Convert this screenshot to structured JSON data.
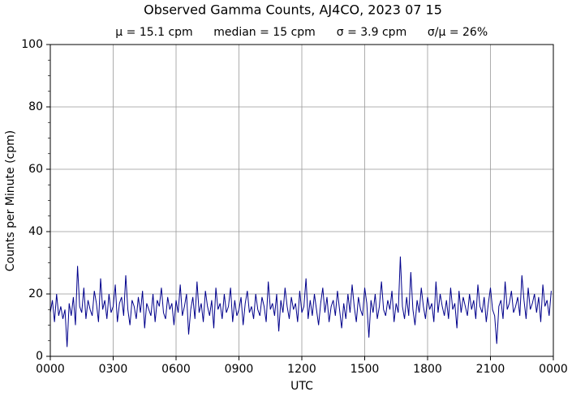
{
  "chart_data": {
    "type": "line",
    "title": "Observed Gamma Counts, AJ4CO, 2023 07 15",
    "stats": [
      "μ = 15.1 cpm",
      "median = 15 cpm",
      "σ = 3.9 cpm",
      "σ/μ = 26%"
    ],
    "xlabel": "UTC",
    "ylabel": "Counts per Minute (cpm)",
    "color": "#00008b",
    "grid": true,
    "xlim": [
      0,
      1440
    ],
    "xticks": [
      {
        "value": 0,
        "label": "0000"
      },
      {
        "value": 180,
        "label": "0300"
      },
      {
        "value": 360,
        "label": "0600"
      },
      {
        "value": 540,
        "label": "0900"
      },
      {
        "value": 720,
        "label": "1200"
      },
      {
        "value": 900,
        "label": "1500"
      },
      {
        "value": 1080,
        "label": "1800"
      },
      {
        "value": 1260,
        "label": "2100"
      },
      {
        "value": 1440,
        "label": "0000"
      }
    ],
    "ylim": [
      0,
      100
    ],
    "yticks": [
      0,
      20,
      40,
      60,
      80,
      100
    ],
    "yminorticks": [
      5,
      10,
      15,
      25,
      30,
      35,
      45,
      50,
      55,
      65,
      70,
      75,
      85,
      90,
      95
    ],
    "x": [
      0,
      6,
      12,
      18,
      24,
      30,
      36,
      42,
      48,
      54,
      60,
      66,
      72,
      78,
      84,
      90,
      96,
      102,
      108,
      114,
      120,
      126,
      132,
      138,
      144,
      150,
      156,
      162,
      168,
      174,
      180,
      186,
      192,
      198,
      204,
      210,
      216,
      222,
      228,
      234,
      240,
      246,
      252,
      258,
      264,
      270,
      276,
      282,
      288,
      294,
      300,
      306,
      312,
      318,
      324,
      330,
      336,
      342,
      348,
      354,
      360,
      366,
      372,
      378,
      384,
      390,
      396,
      402,
      408,
      414,
      420,
      426,
      432,
      438,
      444,
      450,
      456,
      462,
      468,
      474,
      480,
      486,
      492,
      498,
      504,
      510,
      516,
      522,
      528,
      534,
      540,
      546,
      552,
      558,
      564,
      570,
      576,
      582,
      588,
      594,
      600,
      606,
      612,
      618,
      624,
      630,
      636,
      642,
      648,
      654,
      660,
      666,
      672,
      678,
      684,
      690,
      696,
      702,
      708,
      714,
      720,
      726,
      732,
      738,
      744,
      750,
      756,
      762,
      768,
      774,
      780,
      786,
      792,
      798,
      804,
      810,
      816,
      822,
      828,
      834,
      840,
      846,
      852,
      858,
      864,
      870,
      876,
      882,
      888,
      894,
      900,
      906,
      912,
      918,
      924,
      930,
      936,
      942,
      948,
      954,
      960,
      966,
      972,
      978,
      984,
      990,
      996,
      1002,
      1008,
      1014,
      1020,
      1026,
      1032,
      1038,
      1044,
      1050,
      1056,
      1062,
      1068,
      1074,
      1080,
      1086,
      1092,
      1098,
      1104,
      1110,
      1116,
      1122,
      1128,
      1134,
      1140,
      1146,
      1152,
      1158,
      1164,
      1170,
      1176,
      1182,
      1188,
      1194,
      1200,
      1206,
      1212,
      1218,
      1224,
      1230,
      1236,
      1242,
      1248,
      1254,
      1260,
      1266,
      1272,
      1278,
      1284,
      1290,
      1296,
      1302,
      1308,
      1314,
      1320,
      1326,
      1332,
      1338,
      1344,
      1350,
      1356,
      1362,
      1368,
      1374,
      1380,
      1386,
      1392,
      1398,
      1404,
      1410,
      1416,
      1422,
      1428,
      1434
    ],
    "values": [
      14,
      18,
      11,
      20,
      13,
      16,
      12,
      15,
      3,
      17,
      13,
      19,
      10,
      29,
      16,
      14,
      22,
      12,
      18,
      15,
      13,
      21,
      17,
      11,
      25,
      15,
      18,
      12,
      20,
      14,
      16,
      23,
      11,
      17,
      19,
      13,
      26,
      15,
      10,
      18,
      16,
      12,
      19,
      14,
      21,
      9,
      17,
      15,
      13,
      20,
      11,
      18,
      16,
      22,
      14,
      12,
      19,
      15,
      17,
      10,
      18,
      14,
      23,
      13,
      16,
      20,
      7,
      15,
      19,
      12,
      24,
      14,
      17,
      11,
      21,
      16,
      13,
      18,
      9,
      22,
      15,
      17,
      12,
      20,
      14,
      16,
      22,
      11,
      18,
      13,
      15,
      19,
      10,
      17,
      21,
      14,
      16,
      12,
      20,
      15,
      13,
      19,
      16,
      11,
      24,
      15,
      17,
      13,
      20,
      8,
      18,
      14,
      22,
      16,
      12,
      19,
      15,
      17,
      11,
      21,
      14,
      16,
      25,
      12,
      18,
      13,
      20,
      15,
      10,
      17,
      22,
      14,
      19,
      11,
      16,
      18,
      13,
      21,
      15,
      9,
      17,
      12,
      20,
      14,
      23,
      16,
      11,
      19,
      15,
      13,
      22,
      17,
      6,
      18,
      14,
      20,
      12,
      16,
      24,
      15,
      13,
      18,
      15,
      21,
      11,
      17,
      14,
      32,
      16,
      12,
      19,
      13,
      27,
      15,
      10,
      18,
      14,
      22,
      16,
      12,
      19,
      15,
      17,
      11,
      24,
      14,
      20,
      16,
      13,
      18,
      12,
      22,
      15,
      17,
      9,
      21,
      14,
      19,
      16,
      13,
      20,
      15,
      18,
      12,
      23,
      16,
      14,
      19,
      11,
      17,
      22,
      15,
      13,
      4,
      16,
      18,
      12,
      24,
      15,
      17,
      21,
      14,
      16,
      19,
      13,
      26,
      18,
      12,
      22,
      15,
      17,
      20,
      14,
      19,
      11,
      23,
      16,
      18,
      13,
      21
    ]
  }
}
